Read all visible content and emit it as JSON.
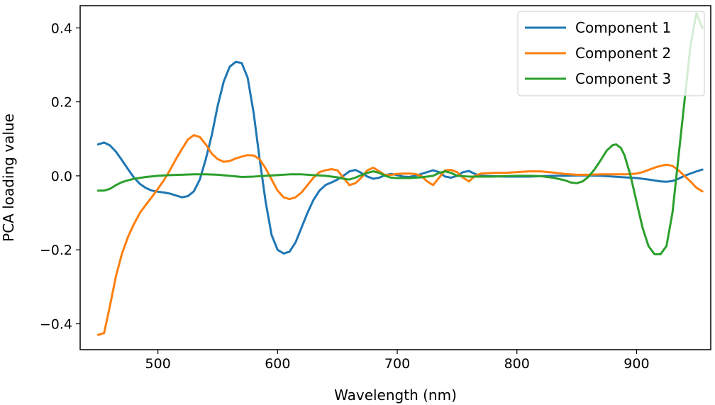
{
  "chart_data": {
    "type": "line",
    "title": "",
    "xlabel": "Wavelength (nm)",
    "ylabel": "PCA loading value",
    "xlim": [
      435,
      962
    ],
    "ylim": [
      -0.47,
      0.46
    ],
    "xticks": [
      500,
      600,
      700,
      800,
      900
    ],
    "xtick_labels": [
      "500",
      "600",
      "700",
      "800",
      "900"
    ],
    "yticks": [
      -0.4,
      -0.2,
      0.0,
      0.2,
      0.4
    ],
    "ytick_labels": [
      "−0.4",
      "−0.2",
      "0.0",
      "0.2",
      "0.4"
    ],
    "grid": false,
    "legend_position": "top-right",
    "series": [
      {
        "name": "Component 1",
        "color": "#1f77b4",
        "points": [
          [
            450,
            0.085
          ],
          [
            455,
            0.09
          ],
          [
            460,
            0.082
          ],
          [
            465,
            0.065
          ],
          [
            470,
            0.042
          ],
          [
            475,
            0.018
          ],
          [
            480,
            -0.005
          ],
          [
            485,
            -0.022
          ],
          [
            490,
            -0.033
          ],
          [
            495,
            -0.04
          ],
          [
            500,
            -0.043
          ],
          [
            505,
            -0.045
          ],
          [
            510,
            -0.048
          ],
          [
            515,
            -0.053
          ],
          [
            520,
            -0.058
          ],
          [
            525,
            -0.055
          ],
          [
            530,
            -0.042
          ],
          [
            535,
            -0.01
          ],
          [
            540,
            0.045
          ],
          [
            545,
            0.11
          ],
          [
            550,
            0.19
          ],
          [
            555,
            0.255
          ],
          [
            560,
            0.295
          ],
          [
            565,
            0.308
          ],
          [
            570,
            0.305
          ],
          [
            575,
            0.265
          ],
          [
            580,
            0.17
          ],
          [
            585,
            0.045
          ],
          [
            590,
            -0.07
          ],
          [
            595,
            -0.16
          ],
          [
            600,
            -0.2
          ],
          [
            605,
            -0.21
          ],
          [
            610,
            -0.205
          ],
          [
            615,
            -0.18
          ],
          [
            620,
            -0.14
          ],
          [
            625,
            -0.1
          ],
          [
            630,
            -0.065
          ],
          [
            635,
            -0.04
          ],
          [
            640,
            -0.025
          ],
          [
            645,
            -0.018
          ],
          [
            650,
            -0.01
          ],
          [
            655,
            0.0
          ],
          [
            660,
            0.012
          ],
          [
            665,
            0.016
          ],
          [
            670,
            0.008
          ],
          [
            675,
            -0.002
          ],
          [
            680,
            -0.008
          ],
          [
            685,
            -0.005
          ],
          [
            690,
            0.002
          ],
          [
            695,
            0.005
          ],
          [
            700,
            0.002
          ],
          [
            705,
            -0.002
          ],
          [
            710,
            -0.003
          ],
          [
            715,
            0.0
          ],
          [
            720,
            0.005
          ],
          [
            725,
            0.01
          ],
          [
            730,
            0.015
          ],
          [
            735,
            0.01
          ],
          [
            740,
            -0.002
          ],
          [
            745,
            -0.005
          ],
          [
            750,
            0.0
          ],
          [
            755,
            0.01
          ],
          [
            760,
            0.013
          ],
          [
            765,
            0.005
          ],
          [
            770,
            0.0
          ],
          [
            780,
            -0.001
          ],
          [
            790,
            -0.002
          ],
          [
            800,
            -0.002
          ],
          [
            810,
            -0.002
          ],
          [
            820,
            -0.001
          ],
          [
            830,
            0.0
          ],
          [
            840,
            0.0
          ],
          [
            850,
            0.001
          ],
          [
            860,
            0.001
          ],
          [
            870,
            0.0
          ],
          [
            880,
            -0.002
          ],
          [
            890,
            -0.004
          ],
          [
            900,
            -0.006
          ],
          [
            910,
            -0.01
          ],
          [
            920,
            -0.015
          ],
          [
            925,
            -0.016
          ],
          [
            930,
            -0.014
          ],
          [
            935,
            -0.008
          ],
          [
            940,
            0.0
          ],
          [
            945,
            0.006
          ],
          [
            950,
            0.012
          ],
          [
            955,
            0.017
          ]
        ]
      },
      {
        "name": "Component 2",
        "color": "#ff7f0e",
        "points": [
          [
            450,
            -0.43
          ],
          [
            455,
            -0.425
          ],
          [
            460,
            -0.35
          ],
          [
            465,
            -0.27
          ],
          [
            470,
            -0.21
          ],
          [
            475,
            -0.165
          ],
          [
            480,
            -0.13
          ],
          [
            485,
            -0.1
          ],
          [
            490,
            -0.078
          ],
          [
            495,
            -0.057
          ],
          [
            500,
            -0.035
          ],
          [
            505,
            -0.012
          ],
          [
            510,
            0.015
          ],
          [
            515,
            0.045
          ],
          [
            520,
            0.072
          ],
          [
            525,
            0.098
          ],
          [
            530,
            0.11
          ],
          [
            535,
            0.105
          ],
          [
            540,
            0.085
          ],
          [
            545,
            0.06
          ],
          [
            550,
            0.045
          ],
          [
            555,
            0.038
          ],
          [
            560,
            0.04
          ],
          [
            565,
            0.047
          ],
          [
            570,
            0.052
          ],
          [
            575,
            0.056
          ],
          [
            580,
            0.055
          ],
          [
            585,
            0.045
          ],
          [
            590,
            0.02
          ],
          [
            595,
            -0.01
          ],
          [
            600,
            -0.04
          ],
          [
            605,
            -0.058
          ],
          [
            610,
            -0.063
          ],
          [
            615,
            -0.058
          ],
          [
            620,
            -0.045
          ],
          [
            625,
            -0.025
          ],
          [
            630,
            -0.005
          ],
          [
            635,
            0.01
          ],
          [
            640,
            0.015
          ],
          [
            645,
            0.018
          ],
          [
            650,
            0.015
          ],
          [
            655,
            -0.005
          ],
          [
            660,
            -0.025
          ],
          [
            665,
            -0.02
          ],
          [
            670,
            -0.005
          ],
          [
            675,
            0.015
          ],
          [
            680,
            0.022
          ],
          [
            685,
            0.012
          ],
          [
            690,
            0.002
          ],
          [
            695,
            0.003
          ],
          [
            700,
            0.005
          ],
          [
            705,
            0.006
          ],
          [
            710,
            0.006
          ],
          [
            715,
            0.005
          ],
          [
            720,
            0.0
          ],
          [
            725,
            -0.015
          ],
          [
            730,
            -0.025
          ],
          [
            735,
            -0.005
          ],
          [
            740,
            0.015
          ],
          [
            745,
            0.016
          ],
          [
            750,
            0.01
          ],
          [
            755,
            -0.005
          ],
          [
            760,
            -0.015
          ],
          [
            765,
            0.0
          ],
          [
            770,
            0.006
          ],
          [
            780,
            0.008
          ],
          [
            790,
            0.008
          ],
          [
            800,
            0.01
          ],
          [
            810,
            0.012
          ],
          [
            820,
            0.012
          ],
          [
            830,
            0.009
          ],
          [
            840,
            0.005
          ],
          [
            850,
            0.003
          ],
          [
            860,
            0.003
          ],
          [
            870,
            0.004
          ],
          [
            880,
            0.004
          ],
          [
            890,
            0.004
          ],
          [
            900,
            0.006
          ],
          [
            905,
            0.01
          ],
          [
            910,
            0.016
          ],
          [
            915,
            0.022
          ],
          [
            920,
            0.027
          ],
          [
            925,
            0.03
          ],
          [
            930,
            0.027
          ],
          [
            935,
            0.015
          ],
          [
            940,
            0.0
          ],
          [
            945,
            -0.015
          ],
          [
            950,
            -0.032
          ],
          [
            955,
            -0.042
          ]
        ]
      },
      {
        "name": "Component 3",
        "color": "#2ca02c",
        "points": [
          [
            450,
            -0.04
          ],
          [
            455,
            -0.04
          ],
          [
            460,
            -0.035
          ],
          [
            465,
            -0.025
          ],
          [
            470,
            -0.017
          ],
          [
            475,
            -0.012
          ],
          [
            480,
            -0.008
          ],
          [
            490,
            -0.003
          ],
          [
            500,
            0.0
          ],
          [
            510,
            0.002
          ],
          [
            520,
            0.003
          ],
          [
            530,
            0.004
          ],
          [
            540,
            0.004
          ],
          [
            550,
            0.003
          ],
          [
            560,
            0.0
          ],
          [
            570,
            -0.003
          ],
          [
            580,
            -0.002
          ],
          [
            590,
            0.0
          ],
          [
            600,
            0.002
          ],
          [
            610,
            0.004
          ],
          [
            620,
            0.004
          ],
          [
            630,
            0.002
          ],
          [
            640,
            0.0
          ],
          [
            650,
            -0.004
          ],
          [
            655,
            -0.008
          ],
          [
            660,
            -0.01
          ],
          [
            665,
            -0.005
          ],
          [
            670,
            0.002
          ],
          [
            675,
            0.008
          ],
          [
            680,
            0.012
          ],
          [
            685,
            0.008
          ],
          [
            690,
            0.0
          ],
          [
            695,
            -0.005
          ],
          [
            700,
            -0.006
          ],
          [
            710,
            -0.006
          ],
          [
            720,
            -0.004
          ],
          [
            730,
            0.0
          ],
          [
            735,
            0.008
          ],
          [
            740,
            0.012
          ],
          [
            745,
            0.008
          ],
          [
            750,
            0.0
          ],
          [
            760,
            -0.002
          ],
          [
            770,
            -0.002
          ],
          [
            780,
            -0.002
          ],
          [
            790,
            -0.001
          ],
          [
            800,
            0.0
          ],
          [
            810,
            0.0
          ],
          [
            820,
            -0.001
          ],
          [
            830,
            -0.005
          ],
          [
            840,
            -0.012
          ],
          [
            845,
            -0.018
          ],
          [
            850,
            -0.02
          ],
          [
            855,
            -0.015
          ],
          [
            860,
            -0.002
          ],
          [
            865,
            0.018
          ],
          [
            870,
            0.042
          ],
          [
            875,
            0.068
          ],
          [
            880,
            0.083
          ],
          [
            883,
            0.085
          ],
          [
            887,
            0.075
          ],
          [
            890,
            0.055
          ],
          [
            895,
            0.0
          ],
          [
            900,
            -0.07
          ],
          [
            905,
            -0.14
          ],
          [
            910,
            -0.19
          ],
          [
            915,
            -0.212
          ],
          [
            920,
            -0.212
          ],
          [
            925,
            -0.19
          ],
          [
            930,
            -0.1
          ],
          [
            935,
            0.05
          ],
          [
            940,
            0.2
          ],
          [
            945,
            0.35
          ],
          [
            950,
            0.44
          ],
          [
            955,
            0.4
          ]
        ]
      }
    ]
  }
}
